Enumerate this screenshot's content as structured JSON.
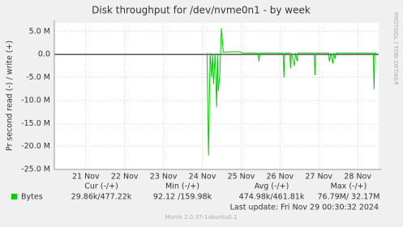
{
  "chart_data": {
    "type": "line",
    "title": "Disk throughput for /dev/nvme0n1 - by week",
    "y_label": "Pr second read (-) / write (+)",
    "watermark": "RRDTOOL / TOBI OETIKER",
    "x": [
      24.12,
      24.16,
      24.2,
      24.24,
      24.26,
      24.29,
      24.33,
      24.37,
      24.39,
      24.41,
      24.45,
      24.47,
      24.49,
      24.54,
      24.97,
      25.02,
      25.43,
      25.46,
      25.48,
      26.08,
      26.1,
      26.12,
      26.25,
      26.27,
      26.29,
      26.37,
      26.4,
      26.44,
      26.46,
      26.88,
      26.9,
      26.92,
      27.25,
      27.27,
      27.31,
      27.36,
      27.38,
      27.42,
      27.44,
      28.4,
      28.42,
      28.44,
      28.49
    ],
    "series": [
      {
        "name": "Bytes",
        "color": "#00cc00",
        "values": [
          0.3,
          -22,
          0.3,
          -5,
          0.2,
          -6.5,
          0.2,
          -11.5,
          0.2,
          -8,
          -4.5,
          0.3,
          5.7,
          0.5,
          0.6,
          0.3,
          0.3,
          -1.5,
          0.3,
          0.3,
          -5,
          0.3,
          0.3,
          -3,
          0.3,
          -2.5,
          0.3,
          -1.5,
          0.3,
          0.3,
          -4.5,
          0.3,
          0.3,
          -1.5,
          0.3,
          -2,
          0.3,
          -1,
          0.3,
          0.3,
          -7.5,
          0.3,
          0.3
        ]
      }
    ],
    "xlim": [
      20.19,
      28.54
    ],
    "xticks": [
      {
        "value": 21,
        "label": "21 Nov"
      },
      {
        "value": 22,
        "label": "22 Nov"
      },
      {
        "value": 23,
        "label": "23 Nov"
      },
      {
        "value": 24,
        "label": "24 Nov"
      },
      {
        "value": 25,
        "label": "25 Nov"
      },
      {
        "value": 26,
        "label": "26 Nov"
      },
      {
        "value": 27,
        "label": "27 Nov"
      },
      {
        "value": 28,
        "label": "28 Nov"
      }
    ],
    "ylim": [
      -25,
      6.9
    ],
    "yticks": [
      {
        "value": 5,
        "label": "5.0 M"
      },
      {
        "value": 0,
        "label": "0.0"
      },
      {
        "value": -5,
        "label": "-5.0 M"
      },
      {
        "value": -10,
        "label": "-10.0 M"
      },
      {
        "value": -15,
        "label": "-15.0 M"
      },
      {
        "value": -20,
        "label": "-20.0 M"
      },
      {
        "value": -25,
        "label": "-25.0 M"
      }
    ],
    "grid": true,
    "legend_headers": [
      "Cur (-/+)",
      "Min (-/+)",
      "Avg (-/+)",
      "Max (-/+)"
    ],
    "legend_values": [
      "29.86k/477.22k",
      "92.12 /159.98k",
      "474.98k/461.81k",
      "76.79M/ 32.17M"
    ],
    "last_update": "Last update: Fri Nov 29 00:30:32 2024",
    "footer": "Munin 2.0.37-1ubuntu0.1"
  }
}
